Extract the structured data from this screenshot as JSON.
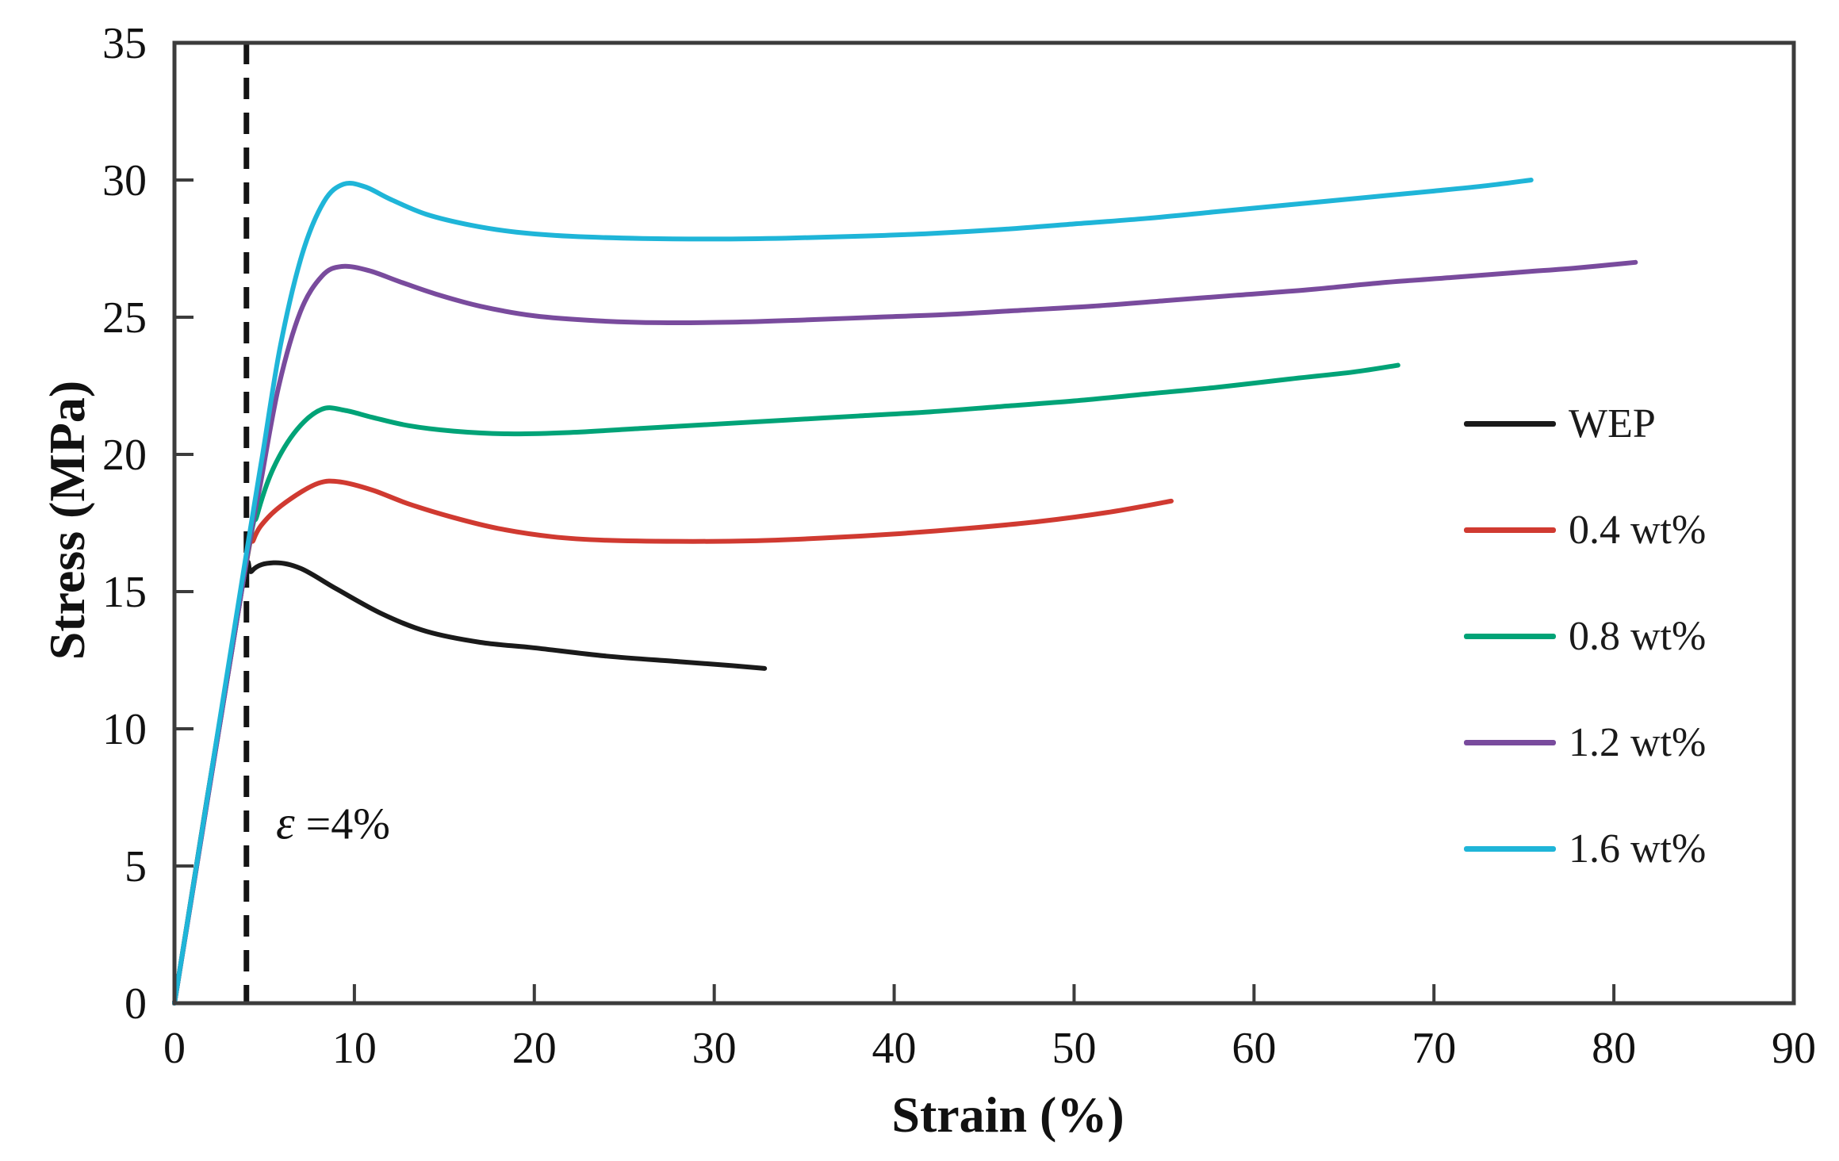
{
  "figure": {
    "background": "#ffffff",
    "legend_title": ""
  },
  "colors": {
    "axis": "#3c3c3c",
    "dashed_line": "#141414",
    "text": "#111111"
  },
  "chart_data": {
    "type": "line",
    "title": "",
    "xlabel": "Strain (%)",
    "ylabel": "Stress (MPa)",
    "xlim": [
      0,
      90
    ],
    "ylim": [
      0,
      35
    ],
    "x_ticks": [
      0,
      10,
      20,
      30,
      40,
      50,
      60,
      70,
      80,
      90
    ],
    "y_ticks": [
      0,
      5,
      10,
      15,
      20,
      25,
      30,
      35
    ],
    "grid": false,
    "legend_position": "right-middle",
    "annotation": {
      "symbol": "ε",
      "text": " =4%",
      "dashed_line_x": 4
    },
    "series": [
      {
        "name": "WEP",
        "color": "#1a1a1a",
        "points": [
          [
            0,
            0
          ],
          [
            3.6,
            14.6
          ],
          [
            4.3,
            15.75
          ],
          [
            5.5,
            16.05
          ],
          [
            7,
            15.85
          ],
          [
            9,
            15.1
          ],
          [
            11.5,
            14.2
          ],
          [
            14,
            13.55
          ],
          [
            17,
            13.15
          ],
          [
            20,
            12.95
          ],
          [
            24,
            12.65
          ],
          [
            28,
            12.45
          ],
          [
            31,
            12.3
          ],
          [
            32.8,
            12.2
          ]
        ]
      },
      {
        "name": "0.4 wt%",
        "color": "#d03a31",
        "points": [
          [
            0,
            0
          ],
          [
            3.8,
            15.3
          ],
          [
            4.4,
            16.9
          ],
          [
            5.2,
            17.7
          ],
          [
            6.5,
            18.4
          ],
          [
            8,
            18.95
          ],
          [
            9.2,
            19.0
          ],
          [
            11,
            18.7
          ],
          [
            13,
            18.2
          ],
          [
            15.5,
            17.7
          ],
          [
            18,
            17.3
          ],
          [
            21,
            17.0
          ],
          [
            24,
            16.87
          ],
          [
            28,
            16.83
          ],
          [
            32,
            16.85
          ],
          [
            36,
            16.95
          ],
          [
            40,
            17.1
          ],
          [
            44,
            17.3
          ],
          [
            48,
            17.55
          ],
          [
            52,
            17.9
          ],
          [
            55.4,
            18.3
          ]
        ]
      },
      {
        "name": "0.8 wt%",
        "color": "#00a377",
        "points": [
          [
            0,
            0
          ],
          [
            3.9,
            15.7
          ],
          [
            4.6,
            17.8
          ],
          [
            5.5,
            19.5
          ],
          [
            6.8,
            20.9
          ],
          [
            8.2,
            21.65
          ],
          [
            9.5,
            21.6
          ],
          [
            11,
            21.35
          ],
          [
            13,
            21.05
          ],
          [
            15.5,
            20.85
          ],
          [
            18.5,
            20.75
          ],
          [
            22,
            20.8
          ],
          [
            26,
            20.95
          ],
          [
            30,
            21.1
          ],
          [
            34,
            21.25
          ],
          [
            38,
            21.4
          ],
          [
            42,
            21.55
          ],
          [
            46,
            21.75
          ],
          [
            50,
            21.95
          ],
          [
            54,
            22.2
          ],
          [
            58,
            22.45
          ],
          [
            62,
            22.75
          ],
          [
            65.5,
            23.0
          ],
          [
            68,
            23.25
          ]
        ]
      },
      {
        "name": "1.2 wt%",
        "color": "#794b9d",
        "points": [
          [
            0,
            0
          ],
          [
            4,
            16.1
          ],
          [
            4.8,
            19.0
          ],
          [
            5.8,
            22.5
          ],
          [
            7,
            25.2
          ],
          [
            8.2,
            26.5
          ],
          [
            9.3,
            26.85
          ],
          [
            10.8,
            26.7
          ],
          [
            12.5,
            26.3
          ],
          [
            14.5,
            25.85
          ],
          [
            17,
            25.4
          ],
          [
            20,
            25.05
          ],
          [
            23.5,
            24.87
          ],
          [
            27,
            24.8
          ],
          [
            31,
            24.82
          ],
          [
            35,
            24.9
          ],
          [
            39,
            25.0
          ],
          [
            43,
            25.1
          ],
          [
            47,
            25.25
          ],
          [
            51,
            25.4
          ],
          [
            55,
            25.6
          ],
          [
            59,
            25.8
          ],
          [
            63,
            26.0
          ],
          [
            67,
            26.25
          ],
          [
            71,
            26.45
          ],
          [
            75,
            26.65
          ],
          [
            78,
            26.8
          ],
          [
            81.2,
            27.0
          ]
        ]
      },
      {
        "name": "1.6 wt%",
        "color": "#1fb5d8",
        "points": [
          [
            0,
            0
          ],
          [
            4,
            16.4
          ],
          [
            4.9,
            20.0
          ],
          [
            5.9,
            24.0
          ],
          [
            7.1,
            27.3
          ],
          [
            8.3,
            29.2
          ],
          [
            9.4,
            29.85
          ],
          [
            10.6,
            29.75
          ],
          [
            12,
            29.3
          ],
          [
            14,
            28.75
          ],
          [
            16.5,
            28.35
          ],
          [
            19,
            28.1
          ],
          [
            22,
            27.95
          ],
          [
            26,
            27.87
          ],
          [
            30,
            27.85
          ],
          [
            34,
            27.88
          ],
          [
            38,
            27.95
          ],
          [
            42,
            28.05
          ],
          [
            46,
            28.2
          ],
          [
            50,
            28.4
          ],
          [
            54,
            28.6
          ],
          [
            58,
            28.85
          ],
          [
            62,
            29.1
          ],
          [
            66,
            29.35
          ],
          [
            70,
            29.6
          ],
          [
            73,
            29.8
          ],
          [
            75.4,
            30.0
          ]
        ]
      }
    ]
  }
}
